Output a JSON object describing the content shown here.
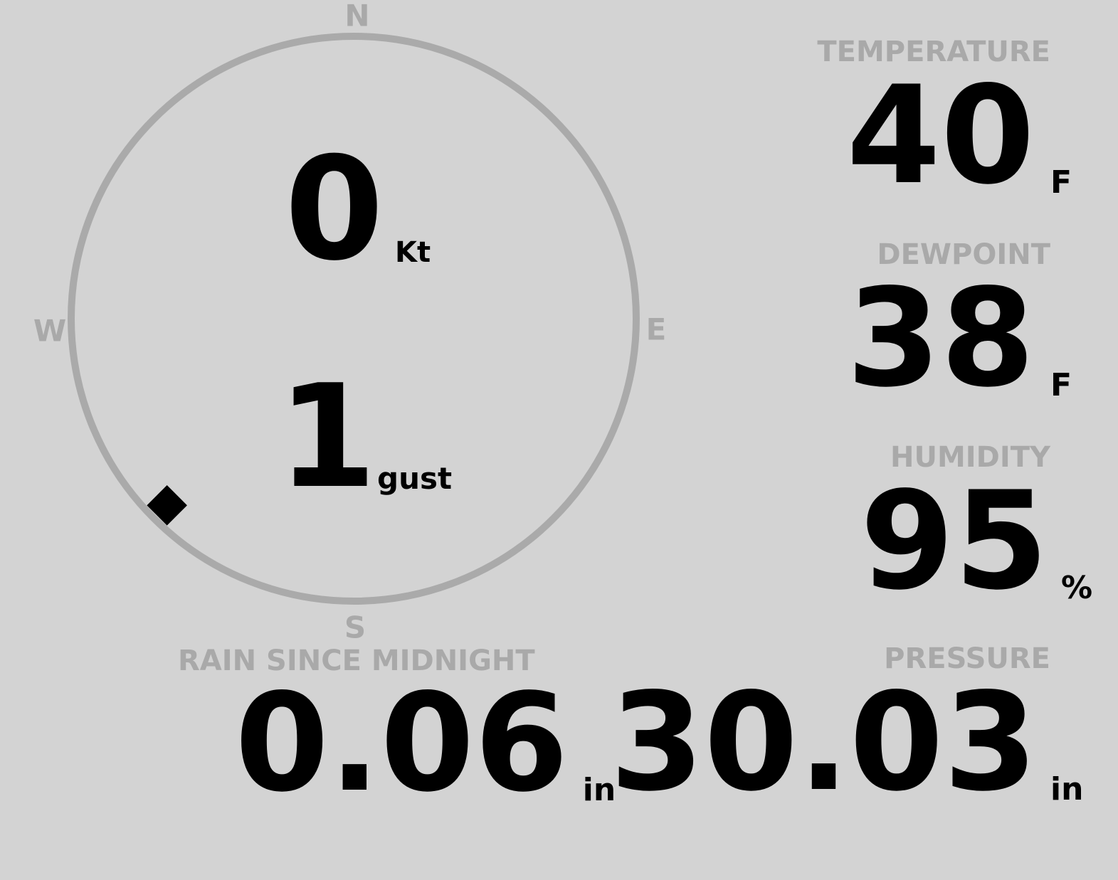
{
  "wind": {
    "speed": "0",
    "speed_unit": "Kt",
    "gust": "1",
    "gust_unit": "gust",
    "direction_deg": 225,
    "compass": {
      "n": "N",
      "e": "E",
      "s": "S",
      "w": "W"
    }
  },
  "temperature": {
    "label": "TEMPERATURE",
    "value": "40",
    "unit": "F"
  },
  "dewpoint": {
    "label": "DEWPOINT",
    "value": "38",
    "unit": "F"
  },
  "humidity": {
    "label": "HUMIDITY",
    "value": "95",
    "unit": "%"
  },
  "rain": {
    "label": "RAIN SINCE MIDNIGHT",
    "value": "0.06",
    "unit": "in"
  },
  "pressure": {
    "label": "PRESSURE",
    "value": "30.03",
    "unit": "in"
  },
  "colors": {
    "background": "#d3d3d3",
    "label": "#a9a9a9",
    "value": "#000000"
  }
}
